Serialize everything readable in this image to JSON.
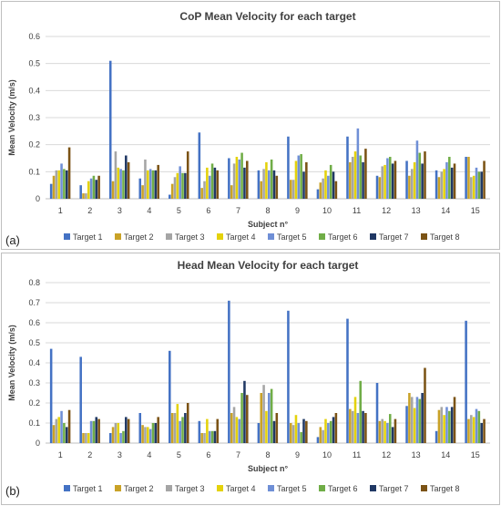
{
  "series_colors": [
    "#4472C4",
    "#C9A227",
    "#A5A5A5",
    "#E4D20B",
    "#6F8FD6",
    "#70AD47",
    "#203864",
    "#7B5315"
  ],
  "chart_data": [
    {
      "type": "bar",
      "panel_label": "(a)",
      "title": "CoP Mean Velocity for each target",
      "xlabel": "Subject n°",
      "ylabel": "Mean Velocity (m/s)",
      "ylim": [
        0,
        0.6
      ],
      "yticks": [
        0,
        0.1,
        0.2,
        0.3,
        0.4,
        0.5,
        0.6
      ],
      "ytick_labels": [
        "0",
        "0.1",
        "0.2",
        "0.3",
        "0.4",
        "0.5",
        "0.6"
      ],
      "grid": true,
      "legend_position": "bottom",
      "categories": [
        "1",
        "2",
        "3",
        "4",
        "5",
        "6",
        "7",
        "8",
        "9",
        "10",
        "11",
        "12",
        "13",
        "14",
        "15"
      ],
      "series": [
        {
          "name": "Target 1",
          "values": [
            0.055,
            0.05,
            0.51,
            0.075,
            0.015,
            0.245,
            0.15,
            0.105,
            0.23,
            0.035,
            0.23,
            0.085,
            0.14,
            0.105,
            0.155
          ]
        },
        {
          "name": "Target 2",
          "values": [
            0.085,
            0.02,
            0.065,
            0.05,
            0.055,
            0.04,
            0.05,
            0.065,
            0.07,
            0.06,
            0.135,
            0.08,
            0.085,
            0.08,
            0.155
          ]
        },
        {
          "name": "Target 3",
          "values": [
            0.105,
            0.02,
            0.175,
            0.145,
            0.08,
            0.065,
            0.13,
            0.11,
            0.07,
            0.075,
            0.155,
            0.12,
            0.11,
            0.1,
            0.08
          ]
        },
        {
          "name": "Target 4",
          "values": [
            0.105,
            0.065,
            0.115,
            0.105,
            0.095,
            0.115,
            0.155,
            0.135,
            0.14,
            0.105,
            0.175,
            0.125,
            0.135,
            0.11,
            0.085
          ]
        },
        {
          "name": "Target 5",
          "values": [
            0.13,
            0.075,
            0.11,
            0.11,
            0.12,
            0.085,
            0.145,
            0.105,
            0.16,
            0.085,
            0.26,
            0.15,
            0.215,
            0.135,
            0.115
          ]
        },
        {
          "name": "Target 6",
          "values": [
            0.11,
            0.085,
            0.105,
            0.105,
            0.095,
            0.13,
            0.17,
            0.145,
            0.165,
            0.125,
            0.16,
            0.155,
            0.17,
            0.155,
            0.1
          ]
        },
        {
          "name": "Target 7",
          "values": [
            0.105,
            0.07,
            0.16,
            0.105,
            0.095,
            0.115,
            0.115,
            0.105,
            0.1,
            0.1,
            0.135,
            0.13,
            0.13,
            0.115,
            0.1
          ]
        },
        {
          "name": "Target 8",
          "values": [
            0.19,
            0.085,
            0.135,
            0.125,
            0.175,
            0.105,
            0.14,
            0.085,
            0.135,
            0.065,
            0.185,
            0.14,
            0.175,
            0.13,
            0.14
          ]
        }
      ]
    },
    {
      "type": "bar",
      "panel_label": "(b)",
      "title": "Head Mean Velocity for each target",
      "xlabel": "Subject n°",
      "ylabel": "Mean Velocity (m/s)",
      "ylim": [
        0,
        0.8
      ],
      "yticks": [
        0,
        0.1,
        0.2,
        0.3,
        0.4,
        0.5,
        0.6,
        0.7,
        0.8
      ],
      "ytick_labels": [
        "0",
        "0.1",
        "0.2",
        "0.3",
        "0.4",
        "0.5",
        "0.6",
        "0.7",
        "0.8"
      ],
      "grid": true,
      "legend_position": "bottom",
      "categories": [
        "1",
        "2",
        "3",
        "4",
        "5",
        "6",
        "7",
        "8",
        "9",
        "10",
        "11",
        "12",
        "13",
        "14",
        "15"
      ],
      "series": [
        {
          "name": "Target 1",
          "values": [
            0.47,
            0.43,
            0.05,
            0.15,
            0.46,
            0.11,
            0.71,
            0.1,
            0.66,
            0.03,
            0.62,
            0.3,
            0.185,
            0.06,
            0.61
          ]
        },
        {
          "name": "Target 2",
          "values": [
            0.09,
            0.05,
            0.08,
            0.09,
            0.15,
            0.05,
            0.15,
            0.25,
            0.1,
            0.08,
            0.17,
            0.11,
            0.25,
            0.165,
            0.12
          ]
        },
        {
          "name": "Target 3",
          "values": [
            0.12,
            0.05,
            0.1,
            0.08,
            0.15,
            0.05,
            0.18,
            0.29,
            0.09,
            0.065,
            0.16,
            0.12,
            0.23,
            0.18,
            0.14
          ]
        },
        {
          "name": "Target 4",
          "values": [
            0.13,
            0.05,
            0.1,
            0.08,
            0.195,
            0.12,
            0.13,
            0.16,
            0.14,
            0.12,
            0.23,
            0.11,
            0.175,
            0.14,
            0.13
          ]
        },
        {
          "name": "Target 5",
          "values": [
            0.16,
            0.11,
            0.05,
            0.07,
            0.11,
            0.06,
            0.12,
            0.25,
            0.1,
            0.1,
            0.15,
            0.1,
            0.23,
            0.18,
            0.17
          ]
        },
        {
          "name": "Target 6",
          "values": [
            0.1,
            0.11,
            0.06,
            0.1,
            0.13,
            0.06,
            0.25,
            0.27,
            0.055,
            0.11,
            0.31,
            0.145,
            0.22,
            0.16,
            0.16
          ]
        },
        {
          "name": "Target 7",
          "values": [
            0.08,
            0.13,
            0.13,
            0.1,
            0.15,
            0.06,
            0.31,
            0.11,
            0.12,
            0.13,
            0.16,
            0.08,
            0.25,
            0.18,
            0.1
          ]
        },
        {
          "name": "Target 8",
          "values": [
            0.165,
            0.12,
            0.12,
            0.13,
            0.2,
            0.12,
            0.24,
            0.15,
            0.11,
            0.15,
            0.15,
            0.12,
            0.375,
            0.23,
            0.12
          ]
        }
      ]
    }
  ]
}
